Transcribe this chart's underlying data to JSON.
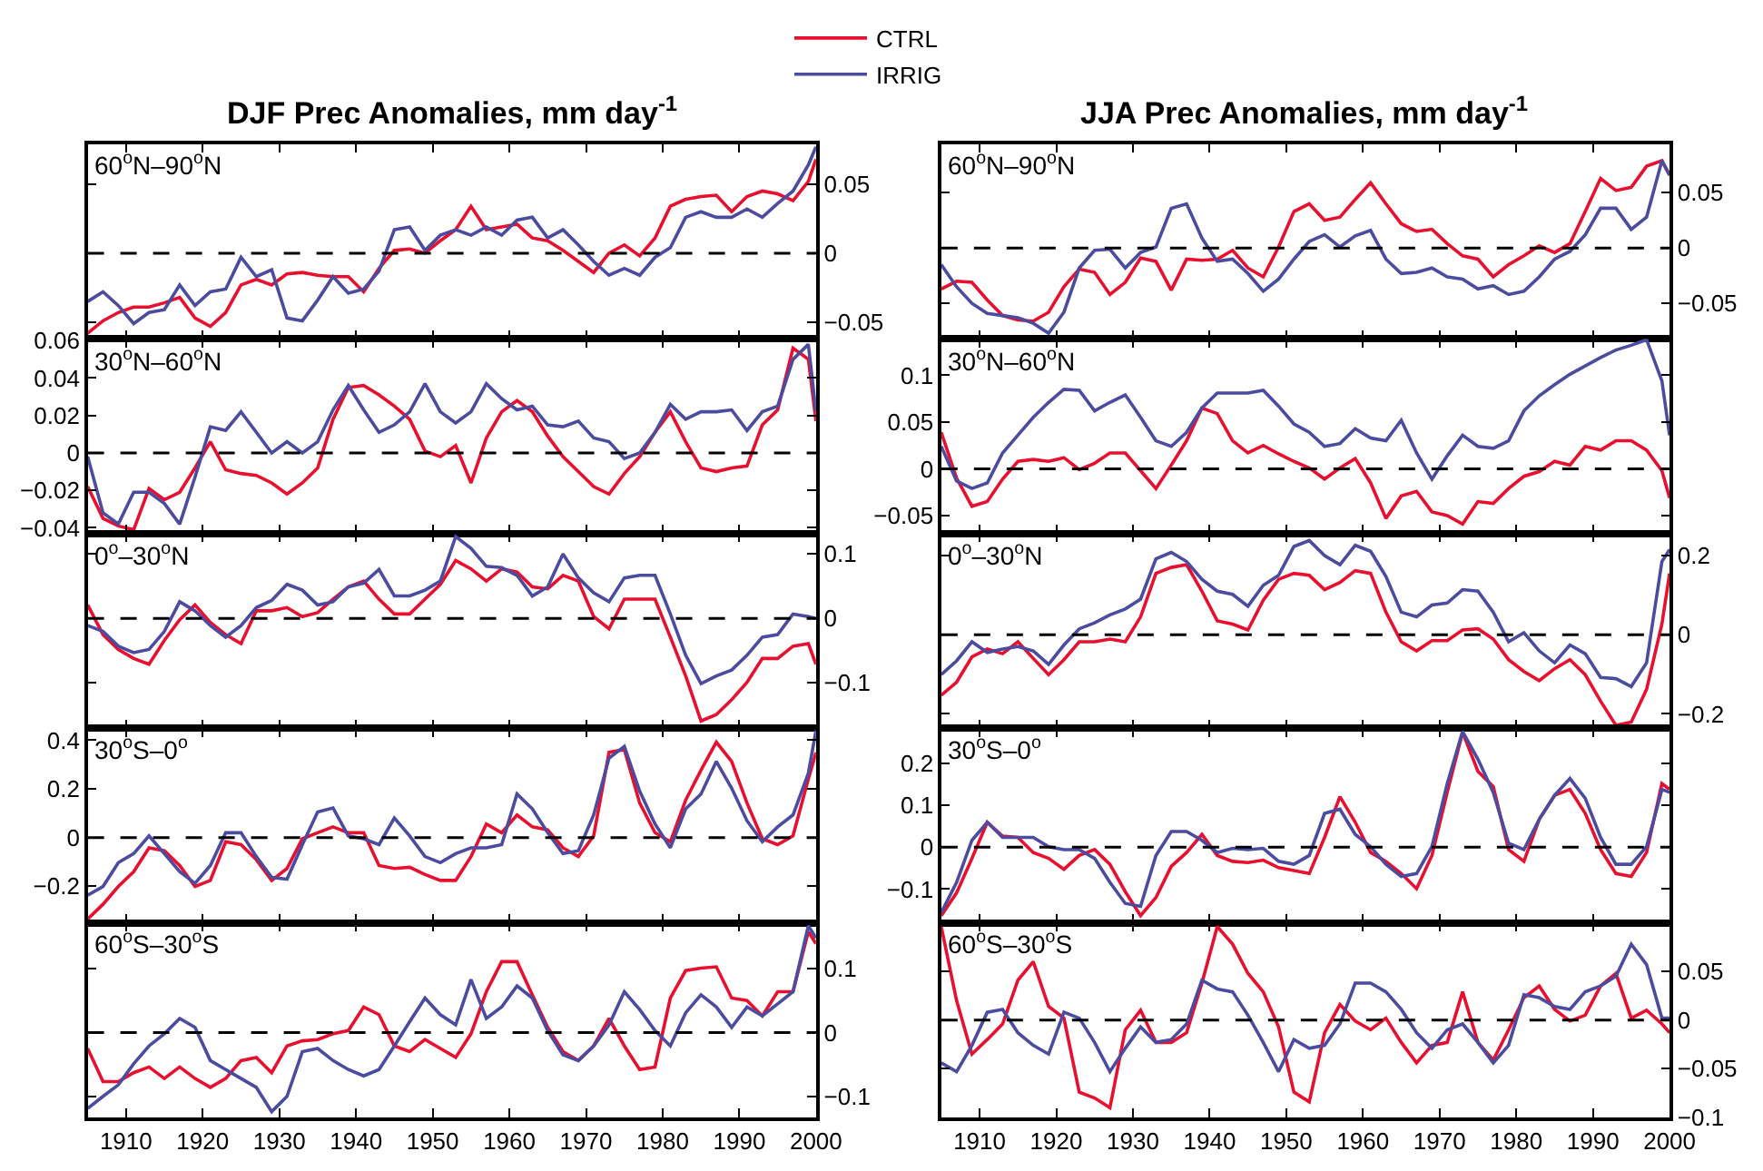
{
  "chart_data": [
    {
      "type": "line",
      "title": "DJF Prec Anomalies, mm day$^{-1}$",
      "annotations": [
        "60$^{o}$N–90$^{o}$N"
      ],
      "legend": "top",
      "tick_labels": "y",
      "x": [
        1905,
        1907,
        1909,
        1911,
        1913,
        1915,
        1917,
        1919,
        1921,
        1923,
        1925,
        1927,
        1929,
        1931,
        1933,
        1935,
        1937,
        1939,
        1941,
        1943,
        1945,
        1947,
        1949,
        1951,
        1953,
        1955,
        1957,
        1959,
        1961,
        1963,
        1965,
        1967,
        1969,
        1971,
        1973,
        1975,
        1977,
        1979,
        1981,
        1983,
        1985,
        1987,
        1989,
        1991,
        1993,
        1995,
        1997,
        1999,
        2000
      ],
      "xlim": [
        1905,
        2000
      ],
      "xticks": [
        1910,
        1920,
        1930,
        1940,
        1950,
        1960,
        1970,
        1980,
        1990,
        2000
      ],
      "ylim": [
        -0.062,
        0.079
      ],
      "yticks": [
        -0.05,
        0,
        0.05
      ],
      "ref_lines": [
        {
          "axis": "y",
          "value": 0,
          "color": "#000000",
          "line_style": "dashed"
        }
      ],
      "series": [
        {
          "name": "CTRL",
          "color": "#e8102e",
          "values": [
            -0.058,
            -0.049,
            -0.043,
            -0.039,
            -0.039,
            -0.036,
            -0.032,
            -0.047,
            -0.053,
            -0.043,
            -0.023,
            -0.019,
            -0.023,
            -0.015,
            -0.014,
            -0.016,
            -0.017,
            -0.017,
            -0.028,
            -0.011,
            0.002,
            0.003,
            0,
            0.009,
            0.017,
            0.034,
            0.017,
            0.019,
            0.021,
            0.011,
            0.009,
            0.002,
            -0.006,
            -0.014,
            0,
            0.006,
            -0.002,
            0.011,
            0.034,
            0.039,
            0.041,
            0.042,
            0.03,
            0.041,
            0.045,
            0.043,
            0.038,
            0.052,
            0.068
          ]
        },
        {
          "name": "IRRIG",
          "color": "#4b4ba0",
          "values": [
            -0.035,
            -0.028,
            -0.038,
            -0.051,
            -0.043,
            -0.041,
            -0.023,
            -0.038,
            -0.028,
            -0.026,
            -0.003,
            -0.017,
            -0.012,
            -0.047,
            -0.049,
            -0.034,
            -0.017,
            -0.029,
            -0.026,
            -0.013,
            0.017,
            0.019,
            0.002,
            0.013,
            0.017,
            0.013,
            0.019,
            0.013,
            0.024,
            0.026,
            0.011,
            0.017,
            0.006,
            -0.006,
            -0.016,
            -0.011,
            -0.016,
            -0.003,
            0.004,
            0.026,
            0.03,
            0.026,
            0.026,
            0.032,
            0.026,
            0.036,
            0.045,
            0.064,
            0.077
          ]
        }
      ]
    },
    {
      "type": "line",
      "annotations": [
        "30$^{o}$N–60$^{o}$N"
      ],
      "tick_labels": "y",
      "x": [
        1905,
        1907,
        1909,
        1911,
        1913,
        1915,
        1917,
        1919,
        1921,
        1923,
        1925,
        1927,
        1929,
        1931,
        1933,
        1935,
        1937,
        1939,
        1941,
        1943,
        1945,
        1947,
        1949,
        1951,
        1953,
        1955,
        1957,
        1959,
        1961,
        1963,
        1965,
        1967,
        1969,
        1971,
        1973,
        1975,
        1977,
        1979,
        1981,
        1983,
        1985,
        1987,
        1989,
        1991,
        1993,
        1995,
        1997,
        1999,
        2000
      ],
      "xlim": [
        1905,
        2000
      ],
      "xticks": [
        1910,
        1920,
        1930,
        1940,
        1950,
        1960,
        1970,
        1980,
        1990,
        2000
      ],
      "ylim": [
        -0.043,
        0.061
      ],
      "yticks": [
        -0.04,
        -0.02,
        0,
        0.02,
        0.04,
        0.06
      ],
      "ref_lines": [
        {
          "axis": "y",
          "value": 0,
          "color": "#000000",
          "line_style": "dashed"
        }
      ],
      "series": [
        {
          "name": "CTRL",
          "color": "#e8102e",
          "values": [
            -0.018,
            -0.035,
            -0.039,
            -0.041,
            -0.019,
            -0.025,
            -0.021,
            -0.008,
            0.006,
            -0.009,
            -0.011,
            -0.012,
            -0.016,
            -0.022,
            -0.016,
            -0.008,
            0.018,
            0.035,
            0.036,
            0.031,
            0.025,
            0.018,
            0.001,
            -0.002,
            0.004,
            -0.016,
            0.008,
            0.022,
            0.028,
            0.022,
            0.009,
            -0.002,
            -0.01,
            -0.018,
            -0.022,
            -0.011,
            -0.002,
            0.011,
            0.022,
            0.006,
            -0.008,
            -0.01,
            -0.008,
            -0.007,
            0.015,
            0.023,
            0.056,
            0.05,
            0.017
          ]
        },
        {
          "name": "IRRIG",
          "color": "#4b4ba0",
          "values": [
            -0.002,
            -0.032,
            -0.038,
            -0.021,
            -0.021,
            -0.027,
            -0.038,
            -0.013,
            0.014,
            0.012,
            0.022,
            0.011,
            0,
            0.006,
            0,
            0.006,
            0.023,
            0.036,
            0.023,
            0.011,
            0.015,
            0.022,
            0.037,
            0.022,
            0.016,
            0.022,
            0.037,
            0.029,
            0.023,
            0.025,
            0.015,
            0.014,
            0.017,
            0.008,
            0.006,
            -0.003,
            0,
            0.011,
            0.026,
            0.018,
            0.022,
            0.022,
            0.023,
            0.012,
            0.022,
            0.025,
            0.05,
            0.058,
            0.022
          ]
        }
      ]
    },
    {
      "type": "line",
      "annotations": [
        "0$^{o}$–30$^{o}$N"
      ],
      "tick_labels": "y",
      "x": [
        1905,
        1907,
        1909,
        1911,
        1913,
        1915,
        1917,
        1919,
        1921,
        1923,
        1925,
        1927,
        1929,
        1931,
        1933,
        1935,
        1937,
        1939,
        1941,
        1943,
        1945,
        1947,
        1949,
        1951,
        1953,
        1955,
        1957,
        1959,
        1961,
        1963,
        1965,
        1967,
        1969,
        1971,
        1973,
        1975,
        1977,
        1979,
        1981,
        1983,
        1985,
        1987,
        1989,
        1991,
        1993,
        1995,
        1997,
        1999,
        2000
      ],
      "xlim": [
        1905,
        2000
      ],
      "xticks": [
        1910,
        1920,
        1930,
        1940,
        1950,
        1960,
        1970,
        1980,
        1990,
        2000
      ],
      "ylim": [
        -0.17,
        0.132
      ],
      "yticks": [
        -0.1,
        0,
        0.1
      ],
      "ref_lines": [
        {
          "axis": "y",
          "value": 0,
          "color": "#000000",
          "line_style": "dashed"
        }
      ],
      "series": [
        {
          "name": "CTRL",
          "color": "#e8102e",
          "values": [
            0.021,
            -0.025,
            -0.048,
            -0.062,
            -0.071,
            -0.034,
            -0.002,
            0.021,
            -0.006,
            -0.025,
            -0.039,
            0.012,
            0.012,
            0.017,
            0.003,
            0.009,
            0.03,
            0.049,
            0.058,
            0.03,
            0.007,
            0.007,
            0.03,
            0.053,
            0.09,
            0.077,
            0.058,
            0.077,
            0.072,
            0.049,
            0.046,
            0.067,
            0.058,
            0.003,
            -0.016,
            0.03,
            0.03,
            0.03,
            -0.029,
            -0.089,
            -0.159,
            -0.149,
            -0.126,
            -0.099,
            -0.062,
            -0.062,
            -0.043,
            -0.039,
            -0.071
          ]
        },
        {
          "name": "IRRIG",
          "color": "#4b4ba0",
          "values": [
            -0.011,
            -0.02,
            -0.043,
            -0.053,
            -0.048,
            -0.02,
            0.026,
            0.012,
            -0.011,
            -0.029,
            -0.011,
            0.017,
            0.028,
            0.053,
            0.044,
            0.021,
            0.026,
            0.049,
            0.055,
            0.076,
            0.035,
            0.035,
            0.044,
            0.058,
            0.127,
            0.109,
            0.081,
            0.079,
            0.067,
            0.035,
            0.049,
            0.1,
            0.063,
            0.04,
            0.026,
            0.063,
            0.067,
            0.067,
            0.007,
            -0.057,
            -0.101,
            -0.089,
            -0.08,
            -0.057,
            -0.029,
            -0.025,
            0.007,
            0.003,
            0
          ]
        }
      ]
    },
    {
      "type": "line",
      "annotations": [
        "30$^{o}$S–0$^{o}$"
      ],
      "tick_labels": "y",
      "x": [
        1905,
        1907,
        1909,
        1911,
        1913,
        1915,
        1917,
        1919,
        1921,
        1923,
        1925,
        1927,
        1929,
        1931,
        1933,
        1935,
        1937,
        1939,
        1941,
        1943,
        1945,
        1947,
        1949,
        1951,
        1953,
        1955,
        1957,
        1959,
        1961,
        1963,
        1965,
        1967,
        1969,
        1971,
        1973,
        1975,
        1977,
        1979,
        1981,
        1983,
        1985,
        1987,
        1989,
        1991,
        1993,
        1995,
        1997,
        1999,
        2000
      ],
      "xlim": [
        1905,
        2000
      ],
      "xticks": [
        1910,
        1920,
        1930,
        1940,
        1950,
        1960,
        1970,
        1980,
        1990,
        2000
      ],
      "ylim": [
        -0.35,
        0.45
      ],
      "yticks": [
        -0.2,
        0,
        0.2,
        0.4
      ],
      "ref_lines": [
        {
          "axis": "y",
          "value": 0,
          "color": "#000000",
          "line_style": "dashed"
        }
      ],
      "series": [
        {
          "name": "CTRL",
          "color": "#e8102e",
          "values": [
            -0.335,
            -0.274,
            -0.201,
            -0.14,
            -0.042,
            -0.054,
            -0.115,
            -0.201,
            -0.176,
            -0.017,
            -0.029,
            -0.091,
            -0.176,
            -0.127,
            -0.005,
            0.02,
            0.044,
            0.02,
            0.02,
            -0.115,
            -0.127,
            -0.122,
            -0.152,
            -0.176,
            -0.176,
            -0.078,
            0.056,
            0.02,
            0.093,
            0.044,
            0.032,
            -0.042,
            -0.078,
            0.007,
            0.35,
            0.362,
            0.142,
            0.02,
            -0.017,
            0.154,
            0.277,
            0.392,
            0.313,
            0.142,
            -0.005,
            -0.029,
            0.007,
            0.24,
            0.35
          ]
        },
        {
          "name": "IRRIG",
          "color": "#4b4ba0",
          "values": [
            -0.237,
            -0.201,
            -0.103,
            -0.066,
            0.007,
            -0.066,
            -0.14,
            -0.188,
            -0.115,
            0.02,
            0.02,
            -0.078,
            -0.164,
            -0.171,
            -0.029,
            0.105,
            0.122,
            0.007,
            -0.005,
            -0.029,
            0.081,
            0.007,
            -0.078,
            -0.103,
            -0.066,
            -0.042,
            -0.042,
            -0.029,
            0.179,
            0.118,
            0.02,
            -0.066,
            -0.054,
            0.093,
            0.326,
            0.375,
            0.191,
            0.056,
            -0.042,
            0.118,
            0.179,
            0.313,
            0.203,
            0.069,
            -0.017,
            0.044,
            0.093,
            0.264,
            0.44
          ]
        }
      ]
    },
    {
      "type": "line",
      "annotations": [
        "60$^{o}$S–30$^{o}$S"
      ],
      "x": [
        1905,
        1907,
        1909,
        1911,
        1913,
        1915,
        1917,
        1919,
        1921,
        1923,
        1925,
        1927,
        1929,
        1931,
        1933,
        1935,
        1937,
        1939,
        1941,
        1943,
        1945,
        1947,
        1949,
        1951,
        1953,
        1955,
        1957,
        1959,
        1961,
        1963,
        1965,
        1967,
        1969,
        1971,
        1973,
        1975,
        1977,
        1979,
        1981,
        1983,
        1985,
        1987,
        1989,
        1991,
        1993,
        1995,
        1997,
        1999,
        2000
      ],
      "xlim": [
        1905,
        2000
      ],
      "xticks": [
        1910,
        1920,
        1930,
        1940,
        1950,
        1960,
        1970,
        1980,
        1990,
        2000
      ],
      "ylim": [
        -0.133,
        0.172
      ],
      "yticks": [
        -0.1,
        0,
        0.1
      ],
      "ref_lines": [
        {
          "axis": "y",
          "value": 0,
          "color": "#000000",
          "line_style": "dashed"
        }
      ],
      "series": [
        {
          "name": "CTRL",
          "color": "#e8102e",
          "values": [
            -0.025,
            -0.077,
            -0.077,
            -0.063,
            -0.054,
            -0.072,
            -0.054,
            -0.072,
            -0.086,
            -0.072,
            -0.044,
            -0.039,
            -0.063,
            -0.021,
            -0.013,
            -0.011,
            -0.002,
            0.003,
            0.04,
            0.028,
            -0.021,
            -0.03,
            -0.011,
            -0.025,
            -0.039,
            -0.002,
            0.064,
            0.111,
            0.111,
            0.059,
            0.008,
            -0.03,
            -0.044,
            -0.021,
            0.022,
            -0.021,
            -0.058,
            -0.054,
            0.054,
            0.097,
            0.101,
            0.103,
            0.054,
            0.05,
            0.026,
            0.064,
            0.064,
            0.158,
            0.139
          ]
        },
        {
          "name": "IRRIG",
          "color": "#4b4ba0",
          "values": [
            -0.119,
            -0.1,
            -0.082,
            -0.049,
            -0.021,
            -0.002,
            0.022,
            0.008,
            -0.044,
            -0.058,
            -0.072,
            -0.086,
            -0.124,
            -0.1,
            -0.03,
            -0.025,
            -0.044,
            -0.058,
            -0.068,
            -0.058,
            -0.021,
            0.017,
            0.054,
            0.028,
            0.012,
            0.083,
            0.022,
            0.04,
            0.073,
            0.054,
            0.003,
            -0.035,
            -0.044,
            -0.021,
            0.012,
            0.064,
            0.036,
            0.003,
            -0.021,
            0.031,
            0.059,
            0.04,
            0.008,
            0.04,
            0.026,
            0.045,
            0.064,
            0.167,
            0.148
          ]
        }
      ]
    },
    {
      "type": "line",
      "title": "JJA Prec Anomalies, mm day$^{-1}$",
      "annotations": [
        "60$^{o}$N–90$^{o}$N"
      ],
      "tick_labels": "y",
      "x": [
        1905,
        1907,
        1909,
        1911,
        1913,
        1915,
        1917,
        1919,
        1921,
        1923,
        1925,
        1927,
        1929,
        1931,
        1933,
        1935,
        1937,
        1939,
        1941,
        1943,
        1945,
        1947,
        1949,
        1951,
        1953,
        1955,
        1957,
        1959,
        1961,
        1963,
        1965,
        1967,
        1969,
        1971,
        1973,
        1975,
        1977,
        1979,
        1981,
        1983,
        1985,
        1987,
        1989,
        1991,
        1993,
        1995,
        1997,
        1999,
        2000
      ],
      "xlim": [
        1905,
        2000
      ],
      "xticks": [
        1910,
        1920,
        1930,
        1940,
        1950,
        1960,
        1970,
        1980,
        1990,
        2000
      ],
      "ylim": [
        -0.082,
        0.094
      ],
      "yticks": [
        -0.05,
        0,
        0.05
      ],
      "ref_lines": [
        {
          "axis": "y",
          "value": 0,
          "color": "#000000",
          "line_style": "dashed"
        }
      ],
      "series": [
        {
          "name": "CTRL",
          "color": "#e8102e",
          "values": [
            -0.037,
            -0.03,
            -0.031,
            -0.047,
            -0.061,
            -0.065,
            -0.066,
            -0.058,
            -0.035,
            -0.019,
            -0.022,
            -0.042,
            -0.031,
            -0.009,
            -0.012,
            -0.038,
            -0.01,
            -0.011,
            -0.01,
            -0.002,
            -0.018,
            -0.026,
            0.001,
            0.033,
            0.04,
            0.025,
            0.028,
            0.044,
            0.059,
            0.04,
            0.022,
            0.015,
            0.017,
            0.004,
            -0.007,
            -0.01,
            -0.026,
            -0.015,
            -0.007,
            0.002,
            -0.004,
            0.004,
            0.033,
            0.063,
            0.052,
            0.055,
            0.074,
            0.079,
            0.066
          ]
        },
        {
          "name": "IRRIG",
          "color": "#4b4ba0",
          "values": [
            -0.015,
            -0.035,
            -0.05,
            -0.059,
            -0.061,
            -0.063,
            -0.068,
            -0.077,
            -0.058,
            -0.018,
            -0.002,
            -0.001,
            -0.018,
            -0.004,
            0.001,
            0.036,
            0.04,
            0.009,
            -0.012,
            -0.01,
            -0.023,
            -0.039,
            -0.028,
            -0.01,
            0.006,
            0.012,
            0.001,
            0.011,
            0.016,
            -0.01,
            -0.023,
            -0.022,
            -0.018,
            -0.026,
            -0.028,
            -0.037,
            -0.034,
            -0.042,
            -0.039,
            -0.026,
            -0.01,
            -0.003,
            0.012,
            0.036,
            0.036,
            0.017,
            0.028,
            0.079,
            0.066
          ]
        }
      ]
    },
    {
      "type": "line",
      "annotations": [
        "30$^{o}$N–60$^{o}$N"
      ],
      "tick_labels": "y",
      "x": [
        1905,
        1907,
        1909,
        1911,
        1913,
        1915,
        1917,
        1919,
        1921,
        1923,
        1925,
        1927,
        1929,
        1931,
        1933,
        1935,
        1937,
        1939,
        1941,
        1943,
        1945,
        1947,
        1949,
        1951,
        1953,
        1955,
        1957,
        1959,
        1961,
        1963,
        1965,
        1967,
        1969,
        1971,
        1973,
        1975,
        1977,
        1979,
        1981,
        1983,
        1985,
        1987,
        1989,
        1991,
        1993,
        1995,
        1997,
        1999,
        2000
      ],
      "xlim": [
        1905,
        2000
      ],
      "xticks": [
        1910,
        1920,
        1930,
        1940,
        1950,
        1960,
        1970,
        1980,
        1990,
        2000
      ],
      "ylim": [
        -0.069,
        0.139
      ],
      "yticks": [
        -0.05,
        0,
        0.05,
        0.1
      ],
      "ref_lines": [
        {
          "axis": "y",
          "value": 0,
          "color": "#000000",
          "line_style": "dashed"
        }
      ],
      "series": [
        {
          "name": "CTRL",
          "color": "#e8102e",
          "values": [
            0.039,
            -0.01,
            -0.04,
            -0.035,
            -0.011,
            0.008,
            0.01,
            0.008,
            0.012,
            -0.001,
            0.006,
            0.017,
            0.017,
            -0.002,
            -0.021,
            0.004,
            0.03,
            0.065,
            0.059,
            0.03,
            0.017,
            0.025,
            0.016,
            0.008,
            0.001,
            -0.011,
            0.001,
            0.011,
            -0.015,
            -0.053,
            -0.029,
            -0.024,
            -0.046,
            -0.05,
            -0.059,
            -0.035,
            -0.037,
            -0.021,
            -0.008,
            -0.003,
            0.008,
            0.004,
            0.024,
            0.02,
            0.03,
            0.03,
            0.02,
            -0.002,
            -0.031
          ]
        },
        {
          "name": "IRRIG",
          "color": "#4b4ba0",
          "values": [
            0.024,
            -0.013,
            -0.021,
            -0.015,
            0.017,
            0.036,
            0.055,
            0.071,
            0.085,
            0.084,
            0.062,
            0.071,
            0.079,
            0.055,
            0.03,
            0.024,
            0.039,
            0.065,
            0.081,
            0.081,
            0.081,
            0.084,
            0.067,
            0.048,
            0.039,
            0.024,
            0.027,
            0.043,
            0.033,
            0.03,
            0.052,
            0.017,
            -0.011,
            0.014,
            0.036,
            0.024,
            0.022,
            0.03,
            0.062,
            0.078,
            0.09,
            0.101,
            0.11,
            0.119,
            0.127,
            0.132,
            0.138,
            0.094,
            0.036
          ]
        }
      ]
    },
    {
      "type": "line",
      "annotations": [
        "0$^{o}$–30$^{o}$N"
      ],
      "tick_labels": "y",
      "x": [
        1905,
        1907,
        1909,
        1911,
        1913,
        1915,
        1917,
        1919,
        1921,
        1923,
        1925,
        1927,
        1929,
        1931,
        1933,
        1935,
        1937,
        1939,
        1941,
        1943,
        1945,
        1947,
        1949,
        1951,
        1953,
        1955,
        1957,
        1959,
        1961,
        1963,
        1965,
        1967,
        1969,
        1971,
        1973,
        1975,
        1977,
        1979,
        1981,
        1983,
        1985,
        1987,
        1989,
        1991,
        1993,
        1995,
        1997,
        1999,
        2000
      ],
      "xlim": [
        1905,
        2000
      ],
      "xticks": [
        1910,
        1920,
        1930,
        1940,
        1950,
        1960,
        1970,
        1980,
        1990,
        2000
      ],
      "ylim": [
        -0.236,
        0.256
      ],
      "yticks": [
        -0.2,
        0,
        0.2
      ],
      "ref_lines": [
        {
          "axis": "y",
          "value": 0,
          "color": "#000000",
          "line_style": "dashed"
        }
      ],
      "series": [
        {
          "name": "CTRL",
          "color": "#e8102e",
          "values": [
            -0.153,
            -0.12,
            -0.056,
            -0.036,
            -0.048,
            -0.018,
            -0.06,
            -0.101,
            -0.063,
            -0.018,
            -0.018,
            -0.011,
            -0.018,
            0.045,
            0.155,
            0.17,
            0.177,
            0.11,
            0.035,
            0.027,
            0.012,
            0.087,
            0.14,
            0.155,
            0.15,
            0.114,
            0.132,
            0.162,
            0.155,
            0.057,
            -0.018,
            -0.041,
            -0.015,
            -0.015,
            0.012,
            0.015,
            -0.011,
            -0.063,
            -0.093,
            -0.116,
            -0.086,
            -0.063,
            -0.101,
            -0.168,
            -0.229,
            -0.221,
            -0.138,
            0.027,
            0.155
          ]
        },
        {
          "name": "IRRIG",
          "color": "#4b4ba0",
          "values": [
            -0.101,
            -0.066,
            -0.018,
            -0.045,
            -0.036,
            -0.03,
            -0.041,
            -0.075,
            -0.026,
            0.015,
            0.03,
            0.05,
            0.065,
            0.09,
            0.192,
            0.208,
            0.185,
            0.14,
            0.11,
            0.102,
            0.072,
            0.125,
            0.15,
            0.223,
            0.238,
            0.2,
            0.177,
            0.226,
            0.211,
            0.147,
            0.057,
            0.045,
            0.075,
            0.08,
            0.114,
            0.11,
            0.057,
            -0.018,
            0.005,
            -0.041,
            -0.071,
            -0.026,
            -0.048,
            -0.108,
            -0.111,
            -0.131,
            -0.071,
            0.185,
            0.215
          ]
        }
      ]
    },
    {
      "type": "line",
      "annotations": [
        "30$^{o}$S–0$^{o}$"
      ],
      "tick_labels": "y",
      "x": [
        1905,
        1907,
        1909,
        1911,
        1913,
        1915,
        1917,
        1919,
        1921,
        1923,
        1925,
        1927,
        1929,
        1931,
        1933,
        1935,
        1937,
        1939,
        1941,
        1943,
        1945,
        1947,
        1949,
        1951,
        1953,
        1955,
        1957,
        1959,
        1961,
        1963,
        1965,
        1967,
        1969,
        1971,
        1973,
        1975,
        1977,
        1979,
        1981,
        1983,
        1985,
        1987,
        1989,
        1991,
        1993,
        1995,
        1997,
        1999,
        2000
      ],
      "xlim": [
        1905,
        2000
      ],
      "xticks": [
        1910,
        1920,
        1930,
        1940,
        1950,
        1960,
        1970,
        1980,
        1990,
        2000
      ],
      "ylim": [
        -0.18,
        0.283
      ],
      "yticks": [
        -0.1,
        0,
        0.1,
        0.2
      ],
      "ref_lines": [
        {
          "axis": "y",
          "value": 0,
          "color": "#000000",
          "line_style": "dashed"
        }
      ],
      "series": [
        {
          "name": "CTRL",
          "color": "#e8102e",
          "values": [
            -0.163,
            -0.109,
            -0.027,
            0.059,
            0.026,
            0.023,
            -0.013,
            -0.027,
            -0.053,
            -0.02,
            -0.006,
            -0.041,
            -0.106,
            -0.163,
            -0.12,
            -0.046,
            -0.013,
            0.03,
            -0.02,
            -0.034,
            -0.037,
            -0.031,
            -0.049,
            -0.056,
            -0.063,
            0.023,
            0.12,
            0.059,
            -0.013,
            -0.034,
            -0.063,
            -0.099,
            -0.02,
            0.13,
            0.273,
            0.18,
            0.144,
            -0.006,
            -0.034,
            0.066,
            0.123,
            0.137,
            0.08,
            -0.006,
            -0.063,
            -0.07,
            -0.013,
            0.151,
            0.137
          ]
        },
        {
          "name": "IRRIG",
          "color": "#4b4ba0",
          "values": [
            -0.156,
            -0.084,
            0.016,
            0.059,
            0.023,
            0.023,
            0.023,
            0.001,
            -0.006,
            -0.006,
            -0.027,
            -0.084,
            -0.134,
            -0.141,
            -0.02,
            0.037,
            0.037,
            0.016,
            -0.013,
            -0.003,
            -0.006,
            -0.003,
            -0.034,
            -0.041,
            -0.02,
            0.08,
            0.09,
            0.03,
            0.001,
            -0.041,
            -0.07,
            -0.063,
            0.001,
            0.151,
            0.275,
            0.209,
            0.13,
            0.009,
            -0.006,
            0.066,
            0.123,
            0.163,
            0.116,
            0.023,
            -0.041,
            -0.041,
            0.001,
            0.137,
            0.13
          ]
        }
      ]
    },
    {
      "type": "line",
      "annotations": [
        "60$^{o}$S–30$^{o}$S"
      ],
      "x": [
        1905,
        1907,
        1909,
        1911,
        1913,
        1915,
        1917,
        1919,
        1921,
        1923,
        1925,
        1927,
        1929,
        1931,
        1933,
        1935,
        1937,
        1939,
        1941,
        1943,
        1945,
        1947,
        1949,
        1951,
        1953,
        1955,
        1957,
        1959,
        1961,
        1963,
        1965,
        1967,
        1969,
        1971,
        1973,
        1975,
        1977,
        1979,
        1981,
        1983,
        1985,
        1987,
        1989,
        1991,
        1993,
        1995,
        1997,
        1999,
        2000
      ],
      "xlim": [
        1905,
        2000
      ],
      "xticks": [
        1910,
        1920,
        1930,
        1940,
        1950,
        1960,
        1970,
        1980,
        1990,
        2000
      ],
      "ylim": [
        -0.1,
        0.1
      ],
      "yticks": [
        -0.1,
        -0.05,
        0,
        0.05
      ],
      "ref_lines": [
        {
          "axis": "y",
          "value": 0,
          "color": "#000000",
          "line_style": "dashed"
        }
      ],
      "series": [
        {
          "name": "CTRL",
          "color": "#e8102e",
          "values": [
            0.096,
            0.02,
            -0.035,
            -0.02,
            -0.004,
            0.041,
            0.06,
            0.014,
            0.002,
            -0.074,
            -0.08,
            -0.09,
            -0.01,
            0.01,
            -0.023,
            -0.023,
            -0.013,
            0.038,
            0.096,
            0.078,
            0.048,
            0.029,
            -0.007,
            -0.074,
            -0.084,
            -0.013,
            0.016,
            -0.001,
            -0.01,
            0.002,
            -0.023,
            -0.044,
            -0.026,
            -0.023,
            0.029,
            -0.023,
            -0.041,
            -0.01,
            0.023,
            0.035,
            0.011,
            -0.001,
            0.005,
            0.035,
            0.048,
            0.002,
            0.01,
            -0.004,
            -0.013
          ]
        },
        {
          "name": "IRRIG",
          "color": "#4b4ba0",
          "values": [
            -0.044,
            -0.053,
            -0.026,
            0.008,
            0.011,
            -0.013,
            -0.026,
            -0.035,
            0.008,
            0.002,
            -0.023,
            -0.053,
            -0.029,
            -0.007,
            -0.023,
            -0.02,
            -0.004,
            0.041,
            0.032,
            0.029,
            0.005,
            -0.023,
            -0.053,
            -0.02,
            -0.029,
            -0.026,
            -0.004,
            0.038,
            0.038,
            0.029,
            0.011,
            -0.013,
            -0.029,
            -0.01,
            -0.004,
            -0.023,
            -0.044,
            -0.026,
            0.026,
            0.023,
            0.014,
            0.011,
            0.029,
            0.035,
            0.045,
            0.078,
            0.057,
            0.002,
            0.002
          ]
        }
      ]
    }
  ]
}
